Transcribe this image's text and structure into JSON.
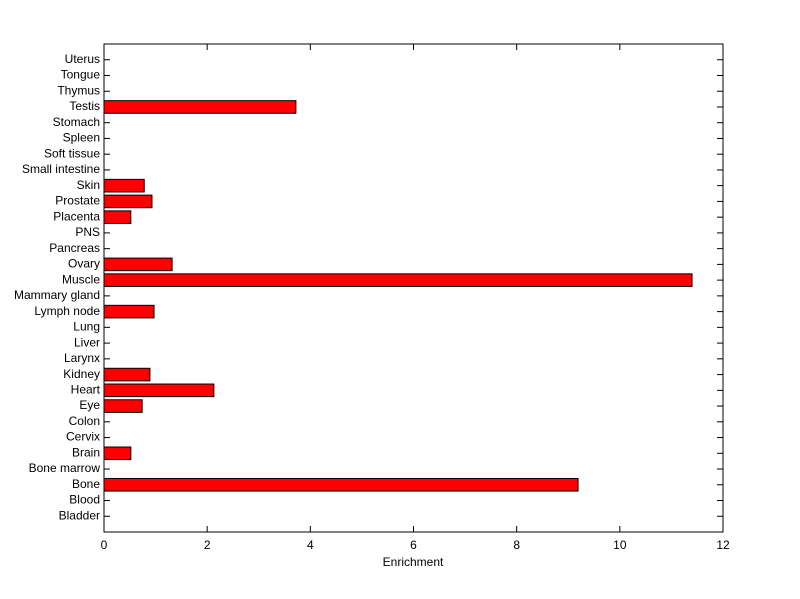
{
  "chart_data": {
    "type": "barh",
    "xlabel": "Enrichment",
    "categories": [
      "Bladder",
      "Blood",
      "Bone",
      "Bone marrow",
      "Brain",
      "Cervix",
      "Colon",
      "Eye",
      "Heart",
      "Kidney",
      "Larynx",
      "Liver",
      "Lung",
      "Lymph node",
      "Mammary gland",
      "Muscle",
      "Ovary",
      "Pancreas",
      "PNS",
      "Placenta",
      "Prostate",
      "Skin",
      "Small intestine",
      "Soft tissue",
      "Spleen",
      "Stomach",
      "Testis",
      "Thymus",
      "Tongue",
      "Uterus"
    ],
    "values": [
      0,
      0,
      9.19,
      0,
      0.52,
      0,
      0,
      0.74,
      2.13,
      0.89,
      0,
      0,
      0,
      0.97,
      0,
      11.4,
      1.32,
      0,
      0,
      0.52,
      0.93,
      0.78,
      0,
      0,
      0,
      0,
      3.72,
      0,
      0,
      0
    ],
    "color": "#ff0000",
    "xlim": [
      0,
      12
    ],
    "xticks": [
      0,
      2,
      4,
      6,
      8,
      10,
      12
    ],
    "grid": false
  }
}
